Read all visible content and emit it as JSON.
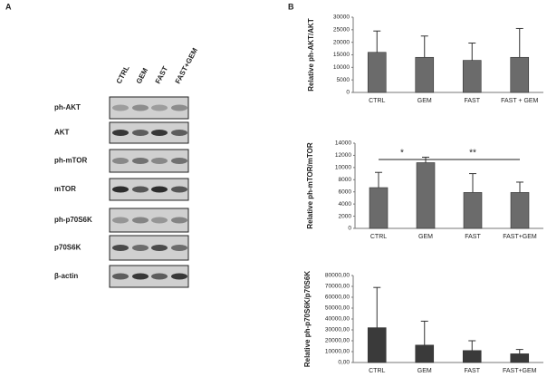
{
  "panel_a": {
    "label": "A",
    "lanes": [
      "CTRL",
      "GEM",
      "FAST",
      "FAST+GEM"
    ],
    "rows": [
      "ph-AKT",
      "AKT",
      "ph-mTOR",
      "mTOR",
      "ph-p70S6K",
      "p70S6K",
      "β-actin"
    ]
  },
  "panel_b_label": "B",
  "chart_data": [
    {
      "type": "bar",
      "y_label": "Relative ph-AKT/AKT",
      "categories": [
        "CTRL",
        "GEM",
        "FAST",
        "FAST + GEM"
      ],
      "values": [
        16000,
        14000,
        12800,
        14000
      ],
      "errors": [
        8500,
        8500,
        6900,
        11500
      ],
      "color": "#6b6b6b",
      "ylim": [
        0,
        30000
      ],
      "yticks": [
        0,
        5000,
        10000,
        15000,
        20000,
        25000,
        30000
      ]
    },
    {
      "type": "bar",
      "y_label": "Relative ph-mTOR/mTOR",
      "categories": [
        "CTRL",
        "GEM",
        "FAST",
        "FAST+GEM"
      ],
      "values": [
        6700,
        10800,
        5900,
        5900
      ],
      "errors": [
        2500,
        900,
        3100,
        1700
      ],
      "color": "#6b6b6b",
      "ylim": [
        0,
        14000
      ],
      "yticks": [
        0,
        2000,
        4000,
        6000,
        8000,
        10000,
        12000,
        14000
      ],
      "annotations": [
        "*",
        "**"
      ]
    },
    {
      "type": "bar",
      "y_label": "Relative ph-p70S6K/p70S6K",
      "categories": [
        "CTRL",
        "GEM",
        "FAST",
        "FAST+GEM"
      ],
      "values": [
        32000,
        16000,
        11000,
        8000
      ],
      "errors": [
        37000,
        22000,
        9000,
        4000
      ],
      "color": "#3a3a3a",
      "ylim": [
        0,
        80000
      ],
      "yticks": [
        {
          "value": 0,
          "label": "0,00"
        },
        {
          "value": 10000,
          "label": "10000,00"
        },
        {
          "value": 20000,
          "label": "20000,00"
        },
        {
          "value": 30000,
          "label": "30000,00"
        },
        {
          "value": 40000,
          "label": "40000,00"
        },
        {
          "value": 50000,
          "label": "50000,00"
        },
        {
          "value": 60000,
          "label": "60000,00"
        },
        {
          "value": 70000,
          "label": "70000,00"
        },
        {
          "value": 80000,
          "label": "80000,00"
        }
      ]
    }
  ]
}
